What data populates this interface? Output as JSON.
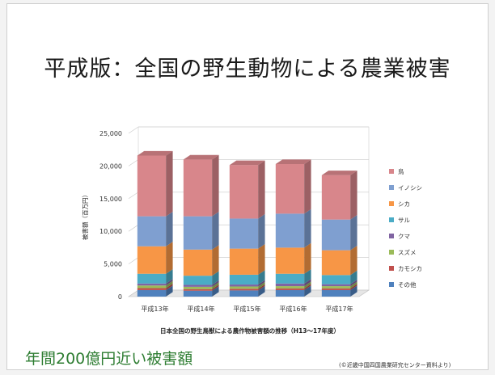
{
  "title": "平成版：全国の野生動物による農業被害",
  "footnote_left": "年間200億円近い被害額",
  "footnote_right": "(©近畿中国四国農業研究センター資料より)",
  "chart_data": {
    "type": "bar",
    "stacked": true,
    "three_d": true,
    "categories": [
      "平成13年",
      "平成14年",
      "平成15年",
      "平成16年",
      "平成17年"
    ],
    "ylabel": "被害額（百万円）",
    "xlabel": "日本全国の野生鳥獣による農作物被害額の推移（H13〜17年度）",
    "ylim": [
      0,
      25000
    ],
    "yticks": [
      "0",
      "5,000",
      "10,000",
      "15,000",
      "20,000",
      "25,000"
    ],
    "series": [
      {
        "name": "その他",
        "color": "#4f81bd",
        "values": [
          1000,
          900,
          950,
          1000,
          1000
        ]
      },
      {
        "name": "カモシカ",
        "color": "#c0504d",
        "values": [
          300,
          250,
          250,
          250,
          250
        ]
      },
      {
        "name": "スズメ",
        "color": "#9bbb59",
        "values": [
          400,
          350,
          350,
          350,
          350
        ]
      },
      {
        "name": "クマ",
        "color": "#8064a2",
        "values": [
          300,
          300,
          300,
          400,
          300
        ]
      },
      {
        "name": "サル",
        "color": "#4bacc6",
        "values": [
          1500,
          1400,
          1500,
          1500,
          1400
        ]
      },
      {
        "name": "シカ",
        "color": "#f79646",
        "values": [
          4200,
          4000,
          4000,
          4000,
          3800
        ]
      },
      {
        "name": "イノシシ",
        "color": "#7f9fd0",
        "values": [
          4600,
          5100,
          4600,
          5200,
          4700
        ]
      },
      {
        "name": "鳥",
        "color": "#d8868b",
        "values": [
          9300,
          8700,
          8200,
          7600,
          6800
        ]
      }
    ],
    "legend_position": "right"
  }
}
